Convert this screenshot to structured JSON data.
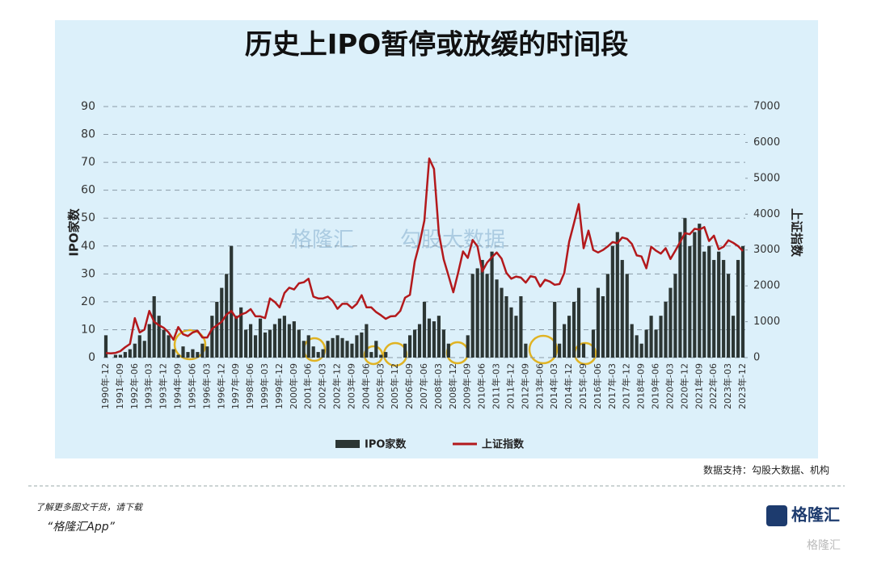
{
  "chart_data": {
    "type": "combo",
    "title": "历史上IPO暂停或放缓的时间段",
    "ylabel": "IPO家数",
    "y2label": "上证指数",
    "categories": [
      "1990年-12",
      null,
      null,
      "1991年-09",
      null,
      null,
      "1992年-06",
      null,
      null,
      "1993年-03",
      null,
      null,
      "1993年-12",
      null,
      null,
      "1994年-09",
      null,
      null,
      "1995年-06",
      null,
      null,
      "1996年-03",
      null,
      null,
      "1996年-12",
      null,
      null,
      "1997年-09",
      null,
      null,
      "1998年-06",
      null,
      null,
      "1999年-03",
      null,
      null,
      "1999年-12",
      null,
      null,
      "2000年-09",
      null,
      null,
      "2001年-06",
      null,
      null,
      "2002年-03",
      null,
      null,
      "2002年-12",
      null,
      null,
      "2003年-09",
      null,
      null,
      "2004年-06",
      null,
      null,
      "2005年-03",
      null,
      null,
      "2005年-12",
      null,
      null,
      "2006年-09",
      null,
      null,
      "2007年-06",
      null,
      null,
      "2008年-03",
      null,
      null,
      "2008年-12",
      null,
      null,
      "2009年-09",
      null,
      null,
      "2010年-06",
      null,
      null,
      "2011年-03",
      null,
      null,
      "2011年-12",
      null,
      null,
      "2012年-09",
      null,
      null,
      "2013年-06",
      null,
      null,
      "2014年-03",
      null,
      null,
      "2014年-12",
      null,
      null,
      "2015年-09",
      null,
      null,
      "2016年-06",
      null,
      null,
      "2017年-03",
      null,
      null,
      "2017年-12",
      null,
      null,
      "2018年-09",
      null,
      null,
      "2019年-06",
      null,
      null,
      "2020年-03",
      null,
      null,
      "2020年-12",
      null,
      null,
      "2021年-09",
      null,
      null,
      "2022年-06",
      null,
      null,
      "2023年-03",
      null,
      null,
      "2023年-12"
    ],
    "series": [
      {
        "name": "IPO家数",
        "type": "bar",
        "color": "#2c3634",
        "values": [
          8,
          0,
          1,
          1,
          2,
          3,
          5,
          8,
          6,
          12,
          22,
          15,
          10,
          8,
          3,
          1,
          4,
          2,
          3,
          2,
          5,
          4,
          15,
          20,
          25,
          30,
          40,
          15,
          18,
          10,
          12,
          8,
          14,
          9,
          10,
          12,
          14,
          15,
          12,
          13,
          10,
          6,
          8,
          4,
          2,
          3,
          6,
          7,
          8,
          7,
          6,
          5,
          8,
          9,
          12,
          2,
          6,
          1,
          2,
          0,
          0,
          0,
          5,
          8,
          10,
          12,
          20,
          14,
          13,
          15,
          10,
          5,
          0,
          0,
          0,
          8,
          30,
          32,
          35,
          30,
          38,
          28,
          25,
          22,
          18,
          15,
          22,
          5,
          0,
          0,
          0,
          0,
          0,
          20,
          5,
          12,
          15,
          20,
          25,
          5,
          0,
          10,
          25,
          22,
          30,
          40,
          45,
          35,
          30,
          12,
          8,
          5,
          10,
          15,
          10,
          15,
          20,
          25,
          30,
          45,
          50,
          40,
          45,
          48,
          38,
          40,
          35,
          38,
          35,
          30,
          15,
          35,
          40
        ]
      },
      {
        "name": "上证指数",
        "type": "line",
        "axis": "y2",
        "color": "#b3191c",
        "values": [
          127,
          120,
          130,
          180,
          290,
          380,
          1100,
          700,
          780,
          1300,
          1000,
          900,
          830,
          700,
          500,
          850,
          650,
          600,
          700,
          750,
          560,
          560,
          800,
          900,
          1000,
          1200,
          1300,
          1100,
          1200,
          1250,
          1350,
          1150,
          1150,
          1100,
          1650,
          1550,
          1400,
          1800,
          1950,
          1900,
          2070,
          2100,
          2200,
          1700,
          1650,
          1650,
          1700,
          1580,
          1360,
          1500,
          1500,
          1380,
          1500,
          1740,
          1400,
          1400,
          1270,
          1180,
          1080,
          1150,
          1160,
          1300,
          1670,
          1750,
          2680,
          3180,
          3820,
          5550,
          5260,
          3470,
          2740,
          2290,
          1820,
          2370,
          2960,
          2780,
          3280,
          3100,
          2400,
          2650,
          2800,
          2930,
          2760,
          2360,
          2200,
          2260,
          2230,
          2090,
          2270,
          2240,
          1980,
          2170,
          2120,
          2030,
          2050,
          2360,
          3230,
          3750,
          4280,
          3050,
          3540,
          3000,
          2930,
          3000,
          3100,
          3220,
          3190,
          3350,
          3310,
          3170,
          2850,
          2820,
          2490,
          3090,
          2980,
          2900,
          3050,
          2750,
          2980,
          3220,
          3470,
          3440,
          3590,
          3570,
          3640,
          3250,
          3400,
          3020,
          3090,
          3270,
          3200,
          3110,
          2970
        ]
      }
    ],
    "ylim": [
      0,
      90
    ],
    "yticks": [
      0,
      10,
      20,
      30,
      40,
      50,
      60,
      70,
      80,
      90
    ],
    "y2lim": [
      0,
      7000
    ],
    "y2ticks": [
      0,
      1000,
      2000,
      3000,
      4000,
      5000,
      6000,
      7000
    ],
    "grid": true
  },
  "watermarks": [
    "格隆汇",
    "勾股大数据"
  ],
  "source_note": "数据支持：勾股大数据、机构",
  "footer": {
    "line1": "了解更多图文干货，请下载",
    "line2": "“格隆汇App”"
  },
  "logo": "格隆汇"
}
